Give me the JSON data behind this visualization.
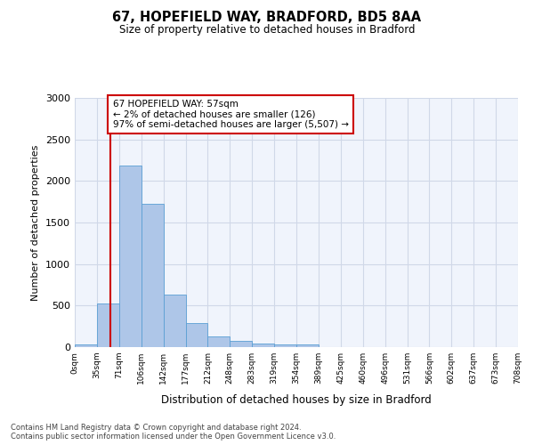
{
  "title_line1": "67, HOPEFIELD WAY, BRADFORD, BD5 8AA",
  "title_line2": "Size of property relative to detached houses in Bradford",
  "xlabel": "Distribution of detached houses by size in Bradford",
  "ylabel": "Number of detached properties",
  "bin_labels": [
    "0sqm",
    "35sqm",
    "71sqm",
    "106sqm",
    "142sqm",
    "177sqm",
    "212sqm",
    "248sqm",
    "283sqm",
    "319sqm",
    "354sqm",
    "389sqm",
    "425sqm",
    "460sqm",
    "496sqm",
    "531sqm",
    "566sqm",
    "602sqm",
    "637sqm",
    "673sqm",
    "708sqm"
  ],
  "bar_values": [
    30,
    520,
    2190,
    1720,
    630,
    285,
    130,
    70,
    40,
    35,
    30,
    5,
    5,
    0,
    0,
    0,
    0,
    0,
    0,
    0
  ],
  "bar_color": "#aec6e8",
  "bar_edge_color": "#5a9fd4",
  "grid_color": "#d0d8e8",
  "bg_color": "#f0f4fc",
  "vline_x": 57,
  "vline_color": "#cc0000",
  "annotation_text": "67 HOPEFIELD WAY: 57sqm\n← 2% of detached houses are smaller (126)\n97% of semi-detached houses are larger (5,507) →",
  "annotation_box_color": "#ffffff",
  "annotation_box_edge": "#cc0000",
  "ylim": [
    0,
    3000
  ],
  "yticks": [
    0,
    500,
    1000,
    1500,
    2000,
    2500,
    3000
  ],
  "footer_text": "Contains HM Land Registry data © Crown copyright and database right 2024.\nContains public sector information licensed under the Open Government Licence v3.0.",
  "bin_width": 35
}
